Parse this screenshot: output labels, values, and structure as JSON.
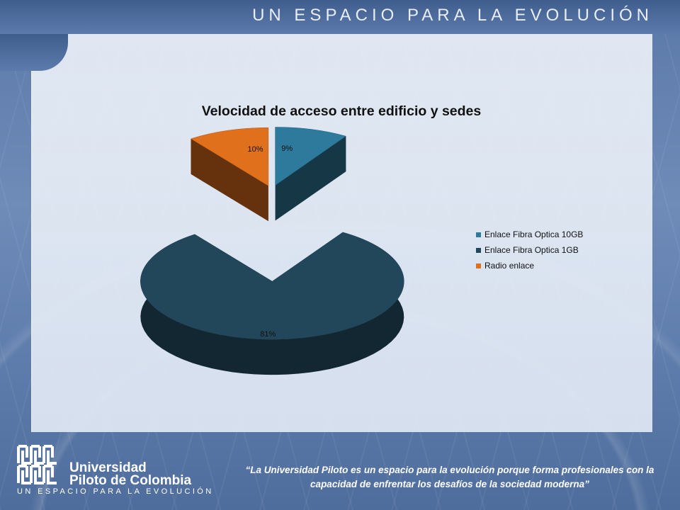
{
  "header": {
    "title": "UN ESPACIO PARA LA EVOLUCIÓN"
  },
  "chart_data": {
    "type": "pie",
    "title": "Velocidad de acceso entre edificio y sedes",
    "categories": [
      "Enlace Fibra Optica 10GB",
      "Enlace Fibra Optica 1GB",
      "Radio enlace"
    ],
    "values": [
      9,
      81,
      10
    ],
    "data_labels": [
      "9%",
      "81%",
      "10%"
    ],
    "colors": [
      "#2e7a9c",
      "#23475a",
      "#e0701c"
    ],
    "exploded": true,
    "three_d": true,
    "legend": {
      "position": "right",
      "items": [
        {
          "label": "Enlace Fibra Optica 10GB",
          "color": "#2e7a9c"
        },
        {
          "label": "Enlace Fibra Optica 1GB",
          "color": "#23475a"
        },
        {
          "label": "Radio enlace",
          "color": "#e0701c"
        }
      ]
    }
  },
  "footer": {
    "university_line1": "Universidad",
    "university_line2": "Piloto de Colombia",
    "tagline": "UN ESPACIO PARA LA EVOLUCIÓN",
    "quote_line1": "“La Universidad Piloto es un espacio para la evolución porque forma profesionales con la",
    "quote_line2": "capacidad de enfrentar los desafíos de la sociedad moderna”"
  }
}
